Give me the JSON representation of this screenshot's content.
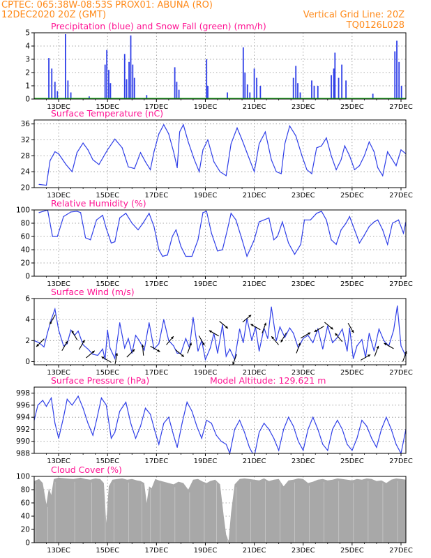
{
  "header": {
    "line1_left": "CPTEC:   065:38W-08:53S   PROX01: ABUNA (RO)",
    "line2_left": "12DEC2020 20Z (GMT)",
    "line2_right": "Vertical Grid Line: 20Z",
    "line3_right": "TQ0126L028"
  },
  "colors": {
    "header": "#ff8a1a",
    "title": "#ff1493",
    "line": "#2f3fe8",
    "snow": "#18b418",
    "cloud": "#a8a8a8",
    "grid": "#8c8c8c"
  },
  "x_ticks": [
    "13DEC",
    "15DEC",
    "17DEC",
    "19DEC",
    "21DEC",
    "23DEC",
    "25DEC",
    "27DEC"
  ],
  "chart_data": [
    {
      "id": "precip",
      "type": "bar",
      "title": "Precipitation (blue) and Snow Fall (green) (mm/h)",
      "ylim": [
        0,
        5
      ],
      "yticks": [
        0,
        1,
        2,
        3,
        4,
        5
      ],
      "snowfall": 0,
      "events": [
        [
          12.6,
          3.1
        ],
        [
          12.72,
          2.3
        ],
        [
          12.85,
          1.3
        ],
        [
          12.95,
          0.6
        ],
        [
          13.28,
          4.9
        ],
        [
          13.38,
          1.4
        ],
        [
          13.5,
          0.5
        ],
        [
          14.25,
          0.2
        ],
        [
          14.9,
          2.6
        ],
        [
          14.97,
          3.7
        ],
        [
          15.05,
          2.2
        ],
        [
          15.12,
          1.2
        ],
        [
          15.7,
          3.4
        ],
        [
          15.78,
          1.5
        ],
        [
          15.88,
          2.8
        ],
        [
          15.95,
          4.8
        ],
        [
          16.03,
          2.6
        ],
        [
          16.1,
          1.6
        ],
        [
          16.6,
          0.3
        ],
        [
          17.75,
          2.4
        ],
        [
          17.83,
          1.3
        ],
        [
          17.92,
          0.7
        ],
        [
          19.05,
          3.0
        ],
        [
          19.1,
          1.0
        ],
        [
          19.9,
          0.5
        ],
        [
          20.55,
          3.9
        ],
        [
          20.62,
          2.0
        ],
        [
          20.72,
          1.1
        ],
        [
          20.82,
          0.5
        ],
        [
          21.0,
          2.3
        ],
        [
          21.1,
          1.6
        ],
        [
          21.25,
          1.0
        ],
        [
          22.6,
          1.6
        ],
        [
          22.7,
          2.5
        ],
        [
          22.78,
          1.2
        ],
        [
          22.88,
          0.5
        ],
        [
          23.35,
          1.4
        ],
        [
          23.45,
          1.0
        ],
        [
          23.6,
          1.0
        ],
        [
          24.15,
          1.8
        ],
        [
          24.25,
          2.3
        ],
        [
          24.3,
          3.5
        ],
        [
          24.45,
          1.6
        ],
        [
          24.58,
          2.6
        ],
        [
          24.75,
          1.4
        ],
        [
          25.85,
          0.4
        ],
        [
          26.75,
          3.6
        ],
        [
          26.83,
          4.4
        ],
        [
          26.92,
          2.8
        ],
        [
          27.02,
          1.0
        ]
      ]
    },
    {
      "id": "temp",
      "type": "line",
      "title": "Surface Temperature (nC)",
      "ylim": [
        20,
        37
      ],
      "yticks": [
        20,
        24,
        28,
        32,
        36
      ],
      "x": [
        12.2,
        12.5,
        12.65,
        12.85,
        13.0,
        13.3,
        13.55,
        13.75,
        14.0,
        14.2,
        14.4,
        14.65,
        15.0,
        15.3,
        15.6,
        15.85,
        16.1,
        16.35,
        16.55,
        16.75,
        16.9,
        17.1,
        17.3,
        17.5,
        17.7,
        17.85,
        17.95,
        18.1,
        18.3,
        18.55,
        18.75,
        18.9,
        19.1,
        19.35,
        19.6,
        19.85,
        20.05,
        20.3,
        20.5,
        20.75,
        21.0,
        21.2,
        21.45,
        21.7,
        21.9,
        22.1,
        22.25,
        22.45,
        22.7,
        22.95,
        23.15,
        23.35,
        23.55,
        23.75,
        23.95,
        24.15,
        24.35,
        24.55,
        24.7,
        24.9,
        25.1,
        25.3,
        25.5,
        25.7,
        25.9,
        26.05,
        26.25,
        26.45,
        26.6,
        26.8,
        27.0,
        27.2
      ],
      "values": [
        20.8,
        20.6,
        26.8,
        29.0,
        28.5,
        25.8,
        24.0,
        28.8,
        31.2,
        29.5,
        27.0,
        25.8,
        29.5,
        32.2,
        30.0,
        25.2,
        24.8,
        28.8,
        26.5,
        24.5,
        29.0,
        33.5,
        35.8,
        33.5,
        29.0,
        25.0,
        34.0,
        35.8,
        31.5,
        27.0,
        24.0,
        29.5,
        32.0,
        26.5,
        24.0,
        23.0,
        31.0,
        35.0,
        32.0,
        28.0,
        24.0,
        31.0,
        34.0,
        27.0,
        24.0,
        23.5,
        31.0,
        35.5,
        33.0,
        28.0,
        24.5,
        23.5,
        30.0,
        30.5,
        32.5,
        28.0,
        24.5,
        27.0,
        30.5,
        28.0,
        24.5,
        25.5,
        28.0,
        31.5,
        29.0,
        25.0,
        23.0,
        29.0,
        27.5,
        25.5,
        29.5,
        28.5
      ]
    },
    {
      "id": "rh",
      "type": "line",
      "title": "Relative Humidity (%)",
      "ylim": [
        0,
        100
      ],
      "yticks": [
        0,
        20,
        40,
        60,
        80,
        100
      ],
      "x": [
        12.2,
        12.55,
        12.75,
        12.95,
        13.2,
        13.5,
        13.75,
        13.9,
        14.1,
        14.3,
        14.55,
        14.8,
        14.95,
        15.15,
        15.3,
        15.5,
        15.75,
        16.0,
        16.25,
        16.45,
        16.7,
        16.9,
        17.1,
        17.25,
        17.45,
        17.65,
        17.8,
        18.0,
        18.2,
        18.45,
        18.7,
        18.9,
        19.05,
        19.25,
        19.5,
        19.7,
        19.9,
        20.05,
        20.25,
        20.5,
        20.7,
        21.0,
        21.2,
        21.4,
        21.6,
        21.8,
        21.95,
        22.15,
        22.4,
        22.65,
        22.9,
        23.05,
        23.3,
        23.55,
        23.75,
        23.95,
        24.15,
        24.35,
        24.55,
        24.75,
        24.9,
        25.1,
        25.3,
        25.5,
        25.7,
        25.9,
        26.05,
        26.25,
        26.45,
        26.65,
        26.9,
        27.1,
        27.2
      ],
      "values": [
        96,
        100,
        60,
        60,
        90,
        97,
        98,
        96,
        58,
        55,
        85,
        92,
        72,
        50,
        52,
        88,
        95,
        80,
        70,
        80,
        95,
        75,
        40,
        30,
        32,
        60,
        70,
        45,
        30,
        30,
        55,
        96,
        98,
        65,
        38,
        40,
        70,
        95,
        85,
        55,
        30,
        55,
        82,
        85,
        88,
        55,
        60,
        82,
        50,
        33,
        48,
        85,
        85,
        95,
        98,
        85,
        55,
        48,
        70,
        80,
        90,
        70,
        50,
        62,
        75,
        82,
        85,
        70,
        48,
        80,
        85,
        65,
        82
      ]
    },
    {
      "id": "wind",
      "type": "line",
      "title": "Surface Wind (m/s)",
      "ylim": [
        -0.3,
        6
      ],
      "yticks": [
        0,
        2,
        4,
        6
      ],
      "x": [
        12.0,
        12.2,
        12.4,
        12.55,
        12.7,
        12.85,
        13.0,
        13.2,
        13.35,
        13.5,
        13.65,
        13.8,
        14.0,
        14.2,
        14.4,
        14.6,
        14.8,
        14.9,
        15.0,
        15.1,
        15.3,
        15.5,
        15.7,
        15.85,
        16.0,
        16.15,
        16.3,
        16.5,
        16.7,
        16.9,
        17.1,
        17.3,
        17.5,
        17.7,
        17.85,
        18.0,
        18.2,
        18.35,
        18.5,
        18.7,
        18.85,
        19.0,
        19.2,
        19.35,
        19.5,
        19.7,
        19.85,
        20.0,
        20.2,
        20.4,
        20.55,
        20.7,
        20.9,
        21.05,
        21.2,
        21.4,
        21.55,
        21.7,
        21.9,
        22.05,
        22.25,
        22.45,
        22.6,
        22.8,
        23.0,
        23.2,
        23.4,
        23.6,
        23.8,
        24.0,
        24.2,
        24.4,
        24.6,
        24.8,
        24.9,
        25.05,
        25.2,
        25.4,
        25.55,
        25.7,
        25.9,
        26.1,
        26.3,
        26.5,
        26.7,
        26.85,
        27.0,
        27.2
      ],
      "values": [
        2.0,
        1.8,
        1.4,
        2.8,
        4.0,
        5.0,
        3.0,
        1.5,
        1.7,
        3.0,
        2.5,
        2.9,
        1.6,
        1.2,
        0.7,
        0.6,
        1.2,
        0.2,
        3.0,
        1.3,
        0.3,
        3.7,
        1.3,
        2.2,
        0.8,
        2.5,
        2.0,
        1.1,
        3.7,
        1.2,
        1.7,
        4.0,
        2.0,
        1.5,
        0.8,
        0.8,
        2.2,
        1.3,
        4.2,
        1.0,
        2.0,
        0.2,
        1.3,
        2.7,
        0.8,
        3.5,
        0.5,
        1.2,
        0.2,
        3.1,
        1.8,
        4.1,
        2.0,
        3.3,
        1.0,
        3.2,
        2.2,
        5.2,
        2.0,
        3.3,
        2.3,
        3.2,
        2.7,
        1.3,
        2.2,
        2.5,
        1.8,
        3.1,
        1.2,
        3.4,
        1.8,
        2.3,
        3.1,
        1.0,
        3.2,
        0.3,
        1.5,
        2.1,
        0.4,
        2.7,
        1.0,
        3.1,
        2.0,
        1.5,
        3.0,
        5.3,
        1.5,
        0.5
      ]
    },
    {
      "id": "pres",
      "type": "line",
      "title": "Surface Pressure (hPa)",
      "annotation": "Model Altitude: 129.621  m",
      "ylim": [
        988,
        999
      ],
      "yticks": [
        988,
        990,
        992,
        994,
        996,
        998
      ],
      "x": [
        12.0,
        12.15,
        12.35,
        12.5,
        12.7,
        12.85,
        13.0,
        13.2,
        13.35,
        13.55,
        13.8,
        14.0,
        14.2,
        14.4,
        14.55,
        14.75,
        14.95,
        15.15,
        15.3,
        15.5,
        15.75,
        15.95,
        16.15,
        16.35,
        16.55,
        16.75,
        16.95,
        17.1,
        17.3,
        17.5,
        17.7,
        17.85,
        18.05,
        18.25,
        18.45,
        18.65,
        18.85,
        19.05,
        19.25,
        19.45,
        19.65,
        19.85,
        20.0,
        20.2,
        20.4,
        20.6,
        20.8,
        21.0,
        21.2,
        21.4,
        21.6,
        21.8,
        22.0,
        22.2,
        22.4,
        22.6,
        22.8,
        23.0,
        23.2,
        23.4,
        23.6,
        23.8,
        24.0,
        24.2,
        24.4,
        24.6,
        24.8,
        25.0,
        25.2,
        25.4,
        25.6,
        25.8,
        26.0,
        26.2,
        26.4,
        26.6,
        26.8,
        27.0,
        27.2
      ],
      "values": [
        993.5,
        996.0,
        996.8,
        995.8,
        997.2,
        993.0,
        990.5,
        994.0,
        997.0,
        996.0,
        997.5,
        995.5,
        993.0,
        991.0,
        993.5,
        997.2,
        996.0,
        990.5,
        991.5,
        995.0,
        996.5,
        993.0,
        990.5,
        992.5,
        995.5,
        994.5,
        991.5,
        989.5,
        993.0,
        994.0,
        991.0,
        989.0,
        993.0,
        996.5,
        995.0,
        992.5,
        990.5,
        993.5,
        993.0,
        991.0,
        990.0,
        989.5,
        988.0,
        992.0,
        993.5,
        991.5,
        989.0,
        987.5,
        991.5,
        993.0,
        992.0,
        990.5,
        988.5,
        992.0,
        994.0,
        992.5,
        990.0,
        988.5,
        992.0,
        994.0,
        992.0,
        989.5,
        988.5,
        992.0,
        993.5,
        992.0,
        989.5,
        988.5,
        990.5,
        993.5,
        992.5,
        990.5,
        989.0,
        992.0,
        994.0,
        992.0,
        989.5,
        988.0,
        992.0
      ]
    },
    {
      "id": "cloud",
      "type": "area",
      "title": "Cloud Cover (%)",
      "ylim": [
        0,
        100
      ],
      "yticks": [
        0,
        20,
        40,
        60,
        80,
        100
      ],
      "x": [
        12.0,
        12.2,
        12.35,
        12.5,
        12.6,
        12.7,
        12.8,
        13.0,
        13.3,
        13.6,
        13.9,
        14.1,
        14.3,
        14.5,
        14.7,
        14.85,
        14.95,
        15.05,
        15.2,
        15.4,
        15.6,
        15.8,
        16.0,
        16.2,
        16.35,
        16.5,
        16.6,
        16.7,
        16.8,
        16.95,
        17.1,
        17.3,
        17.5,
        17.7,
        17.9,
        18.1,
        18.3,
        18.5,
        18.7,
        18.9,
        19.05,
        19.2,
        19.4,
        19.6,
        19.75,
        19.85,
        19.95,
        20.05,
        20.2,
        20.4,
        20.6,
        20.8,
        21.0,
        21.2,
        21.4,
        21.6,
        21.8,
        22.0,
        22.2,
        22.4,
        22.6,
        22.8,
        23.0,
        23.2,
        23.4,
        23.6,
        23.8,
        24.0,
        24.2,
        24.4,
        24.6,
        24.8,
        25.0,
        25.2,
        25.4,
        25.6,
        25.8,
        26.0,
        26.2,
        26.4,
        26.6,
        26.8,
        27.0,
        27.2
      ],
      "values": [
        93,
        96,
        90,
        58,
        82,
        72,
        96,
        98,
        97,
        96,
        98,
        96,
        95,
        97,
        96,
        90,
        30,
        85,
        95,
        96,
        97,
        95,
        96,
        94,
        93,
        90,
        60,
        85,
        82,
        96,
        94,
        92,
        90,
        88,
        92,
        90,
        80,
        95,
        96,
        92,
        90,
        93,
        95,
        88,
        40,
        12,
        3,
        45,
        88,
        96,
        97,
        96,
        95,
        94,
        97,
        93,
        95,
        96,
        85,
        94,
        95,
        97,
        96,
        90,
        92,
        95,
        96,
        94,
        95,
        97,
        96,
        95,
        94,
        96,
        95,
        97,
        96,
        93,
        94,
        90,
        95,
        97,
        96,
        95
      ]
    }
  ],
  "wind_arrows": [
    {
      "x": 12.25,
      "angle": 225
    },
    {
      "x": 12.75,
      "angle": 210
    },
    {
      "x": 13.25,
      "angle": 30
    },
    {
      "x": 13.65,
      "angle": 330
    },
    {
      "x": 13.95,
      "angle": 30
    },
    {
      "x": 14.3,
      "angle": 50
    },
    {
      "x": 14.95,
      "angle": 300
    },
    {
      "x": 15.35,
      "angle": 10
    },
    {
      "x": 15.95,
      "angle": 45
    },
    {
      "x": 16.45,
      "angle": 355
    },
    {
      "x": 16.95,
      "angle": 120
    },
    {
      "x": 17.55,
      "angle": 40
    },
    {
      "x": 17.95,
      "angle": 130
    },
    {
      "x": 18.35,
      "angle": 20
    },
    {
      "x": 18.85,
      "angle": 150
    },
    {
      "x": 19.35,
      "angle": 300
    },
    {
      "x": 19.75,
      "angle": 130
    },
    {
      "x": 20.2,
      "angle": 200
    },
    {
      "x": 20.7,
      "angle": 50
    },
    {
      "x": 21.05,
      "angle": 300
    },
    {
      "x": 21.4,
      "angle": 20
    },
    {
      "x": 21.85,
      "angle": 320
    },
    {
      "x": 22.2,
      "angle": 210
    },
    {
      "x": 22.8,
      "angle": 20
    },
    {
      "x": 23.1,
      "angle": 60
    },
    {
      "x": 23.65,
      "angle": 240
    },
    {
      "x": 24.05,
      "angle": 130
    },
    {
      "x": 24.45,
      "angle": 320
    },
    {
      "x": 24.95,
      "angle": 150
    },
    {
      "x": 25.55,
      "angle": 60
    },
    {
      "x": 26.0,
      "angle": 20
    },
    {
      "x": 26.5,
      "angle": 300
    },
    {
      "x": 27.15,
      "angle": 20
    }
  ]
}
